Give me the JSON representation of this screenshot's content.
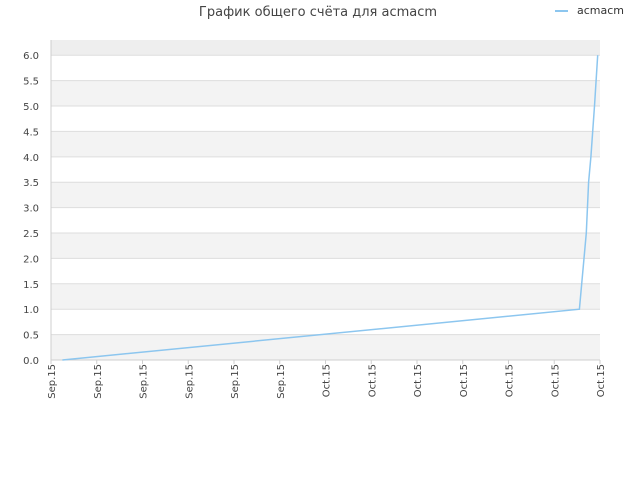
{
  "chart_data": {
    "type": "line",
    "title": "График общего счёта для acmacm",
    "xlabel": "",
    "ylabel": "",
    "ylim": [
      0,
      6.3
    ],
    "yticks": [
      "0.0",
      "0.5",
      "1.0",
      "1.5",
      "2.0",
      "2.5",
      "3.0",
      "3.5",
      "4.0",
      "4.5",
      "5.0",
      "5.5",
      "6.0"
    ],
    "xticks": [
      "Sep.15",
      "Sep.15",
      "Sep.15",
      "Sep.15",
      "Sep.15",
      "Sep.15",
      "Oct.15",
      "Oct.15",
      "Oct.15",
      "Oct.15",
      "Oct.15",
      "Oct.15",
      "Oct.15"
    ],
    "legend_position": "top-right",
    "grid": true,
    "series": [
      {
        "name": "acmacm",
        "color": "#8cc6ef",
        "x": [
          0.25,
          11.55,
          11.6,
          11.7,
          11.75,
          11.8,
          11.88,
          11.95
        ],
        "y": [
          0,
          1.0,
          1.5,
          2.5,
          3.5,
          4.0,
          5.0,
          6.0
        ]
      }
    ]
  }
}
